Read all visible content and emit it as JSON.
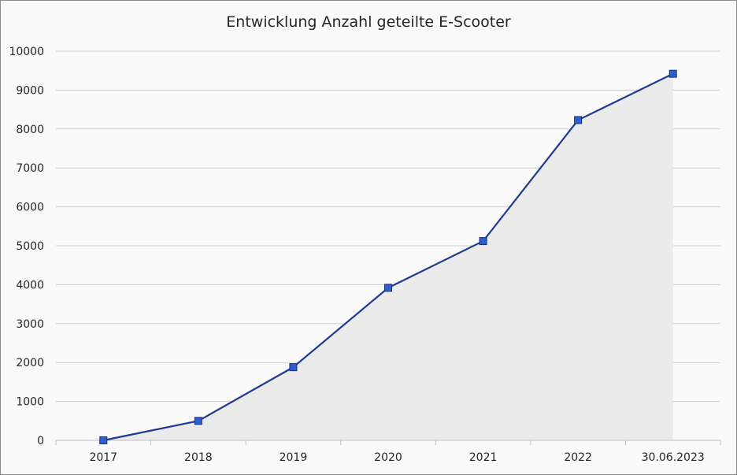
{
  "chart_data": {
    "type": "area",
    "title": "Entwicklung Anzahl geteilte E-Scooter",
    "xlabel": "",
    "ylabel": "",
    "categories": [
      "2017",
      "2018",
      "2019",
      "2020",
      "2021",
      "2022",
      "30.06.2023"
    ],
    "values": [
      0,
      500,
      1880,
      3920,
      5120,
      8230,
      9420
    ],
    "ylim": [
      0,
      10000
    ],
    "yticks": [
      0,
      1000,
      2000,
      3000,
      4000,
      5000,
      6000,
      7000,
      8000,
      9000,
      10000
    ],
    "grid": true,
    "legend": "none",
    "marker": "square",
    "colors": {
      "line": "#1f3a93",
      "marker_fill": "#2f5fcf",
      "marker_stroke": "#1a2f7a",
      "area": "#ebebeb",
      "grid": "#cfcfcf"
    }
  }
}
